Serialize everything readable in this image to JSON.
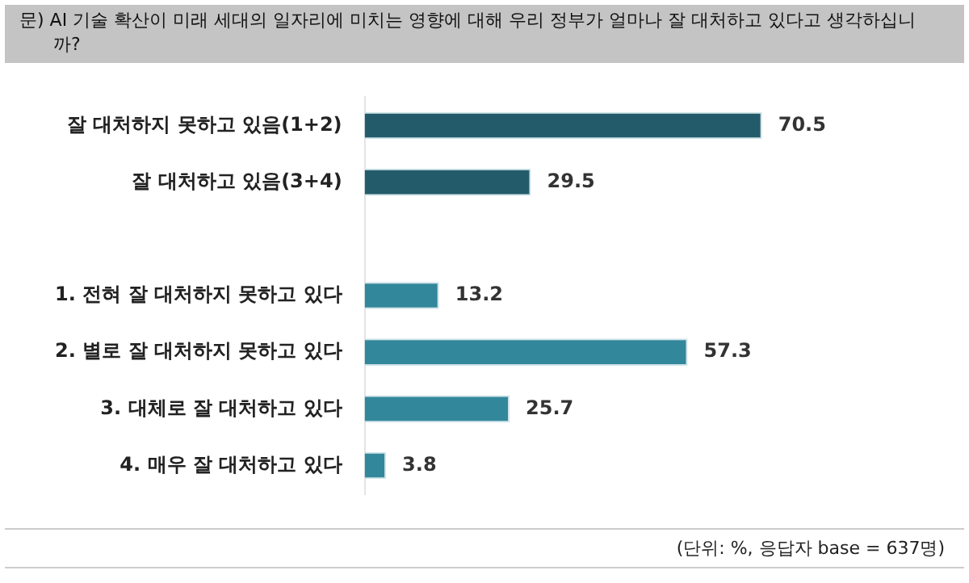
{
  "chart_data": {
    "type": "bar",
    "orientation": "horizontal",
    "title": "문) AI 기술 확산이 미래 세대의 일자리에 미치는 영향에 대해 우리 정부가 얼마나 잘 대처하고 있다고 생각하십니까?",
    "categories": [
      "잘 대처하지 못하고 있음(1+2)",
      "잘 대처하고 있음(3+4)",
      null,
      "1. 전혀 잘 대처하지 못하고 있다",
      "2. 별로 잘 대처하지 못하고 있다",
      "3. 대체로 잘 대처하고 있다",
      "4. 매우 잘 대처하고 있다"
    ],
    "values": [
      70.5,
      29.5,
      null,
      13.2,
      57.3,
      25.7,
      3.8
    ],
    "colors": [
      "#245b6b",
      "#245b6b",
      null,
      "#33879b",
      "#33879b",
      "#33879b",
      "#33879b"
    ],
    "data_labels": true,
    "legend": false,
    "annotations": [
      "(단위: %, 응답자 base = 637명)"
    ]
  }
}
